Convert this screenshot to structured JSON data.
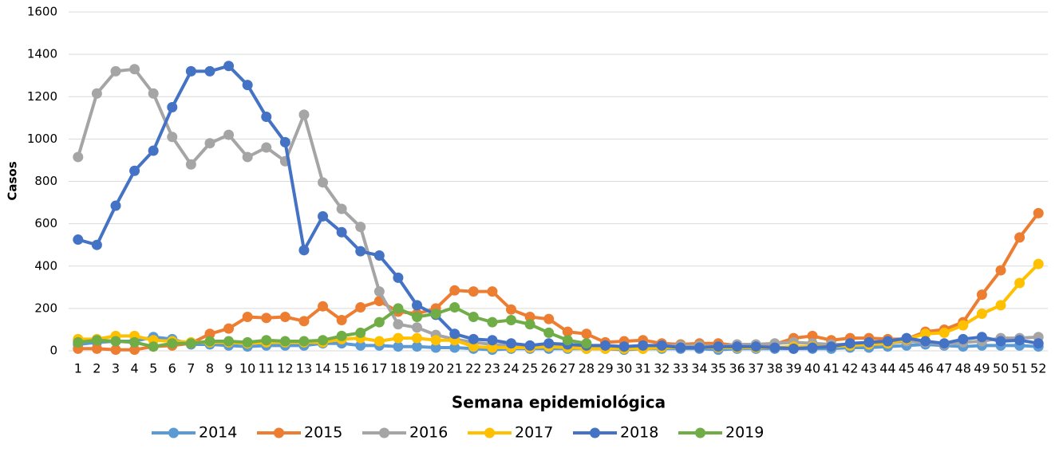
{
  "chart_data": {
    "type": "line",
    "x_label": "Semana epidemiológica",
    "y_label": "Casos",
    "categories": [
      "1",
      "2",
      "3",
      "4",
      "5",
      "6",
      "7",
      "8",
      "9",
      "10",
      "11",
      "12",
      "13",
      "14",
      "15",
      "16",
      "17",
      "18",
      "19",
      "20",
      "21",
      "22",
      "23",
      "24",
      "25",
      "26",
      "27",
      "28",
      "29",
      "30",
      "31",
      "32",
      "33",
      "34",
      "35",
      "36",
      "37",
      "38",
      "39",
      "40",
      "41",
      "42",
      "43",
      "44",
      "45",
      "46",
      "47",
      "48",
      "49",
      "50",
      "51",
      "52"
    ],
    "ylim": [
      0,
      1600
    ],
    "yticks": [
      0,
      200,
      400,
      600,
      800,
      1000,
      1200,
      1400,
      1600
    ],
    "grid": true,
    "legend": "bottom",
    "series": [
      {
        "name": "2014",
        "color": "#5b9bd5",
        "values": [
          30,
          40,
          45,
          45,
          65,
          55,
          30,
          30,
          25,
          20,
          25,
          25,
          25,
          35,
          35,
          25,
          25,
          20,
          20,
          15,
          15,
          10,
          5,
          10,
          10,
          10,
          10,
          10,
          10,
          5,
          10,
          10,
          10,
          10,
          5,
          10,
          10,
          10,
          10,
          10,
          10,
          15,
          15,
          20,
          25,
          30,
          25,
          20,
          25,
          25,
          25,
          20
        ]
      },
      {
        "name": "2015",
        "color": "#ed7d31",
        "values": [
          10,
          10,
          5,
          5,
          20,
          25,
          35,
          80,
          105,
          160,
          155,
          160,
          140,
          210,
          145,
          205,
          235,
          185,
          175,
          200,
          285,
          280,
          280,
          195,
          160,
          150,
          90,
          80,
          40,
          45,
          50,
          35,
          30,
          35,
          35,
          25,
          25,
          30,
          60,
          70,
          50,
          60,
          60,
          55,
          55,
          90,
          100,
          135,
          265,
          380,
          535,
          650
        ]
      },
      {
        "name": "2016",
        "color": "#a5a5a5",
        "values": [
          915,
          1215,
          1320,
          1330,
          1215,
          1010,
          880,
          980,
          1020,
          915,
          960,
          895,
          1115,
          795,
          670,
          585,
          280,
          125,
          110,
          75,
          55,
          40,
          30,
          25,
          20,
          20,
          20,
          20,
          20,
          20,
          20,
          25,
          25,
          25,
          20,
          30,
          30,
          35,
          40,
          35,
          30,
          30,
          35,
          35,
          45,
          40,
          30,
          40,
          45,
          60,
          60,
          65
        ]
      },
      {
        "name": "2017",
        "color": "#ffc000",
        "values": [
          55,
          55,
          70,
          70,
          50,
          45,
          40,
          40,
          40,
          35,
          40,
          40,
          40,
          40,
          55,
          60,
          45,
          60,
          60,
          50,
          50,
          20,
          15,
          15,
          15,
          20,
          15,
          10,
          10,
          10,
          10,
          15,
          15,
          15,
          15,
          15,
          15,
          15,
          20,
          20,
          20,
          25,
          30,
          35,
          55,
          80,
          85,
          120,
          175,
          215,
          320,
          410
        ]
      },
      {
        "name": "2018",
        "color": "#4472c4",
        "values": [
          525,
          500,
          685,
          850,
          945,
          1150,
          1320,
          1320,
          1345,
          1255,
          1105,
          985,
          475,
          635,
          560,
          470,
          450,
          345,
          215,
          170,
          80,
          55,
          50,
          35,
          25,
          35,
          30,
          25,
          25,
          20,
          25,
          25,
          15,
          15,
          20,
          20,
          20,
          15,
          10,
          15,
          20,
          35,
          40,
          45,
          60,
          45,
          35,
          55,
          65,
          45,
          50,
          35
        ]
      },
      {
        "name": "2019",
        "color": "#70ad47",
        "values": [
          40,
          50,
          45,
          40,
          20,
          35,
          35,
          45,
          45,
          40,
          50,
          45,
          45,
          50,
          70,
          85,
          135,
          200,
          160,
          175,
          205,
          160,
          135,
          145,
          125,
          85,
          50,
          35,
          null,
          null,
          null,
          null,
          null,
          null,
          null,
          null,
          null,
          null,
          null,
          null,
          null,
          null,
          null,
          null,
          null,
          null,
          null,
          null,
          null,
          null,
          null,
          null
        ]
      }
    ]
  }
}
